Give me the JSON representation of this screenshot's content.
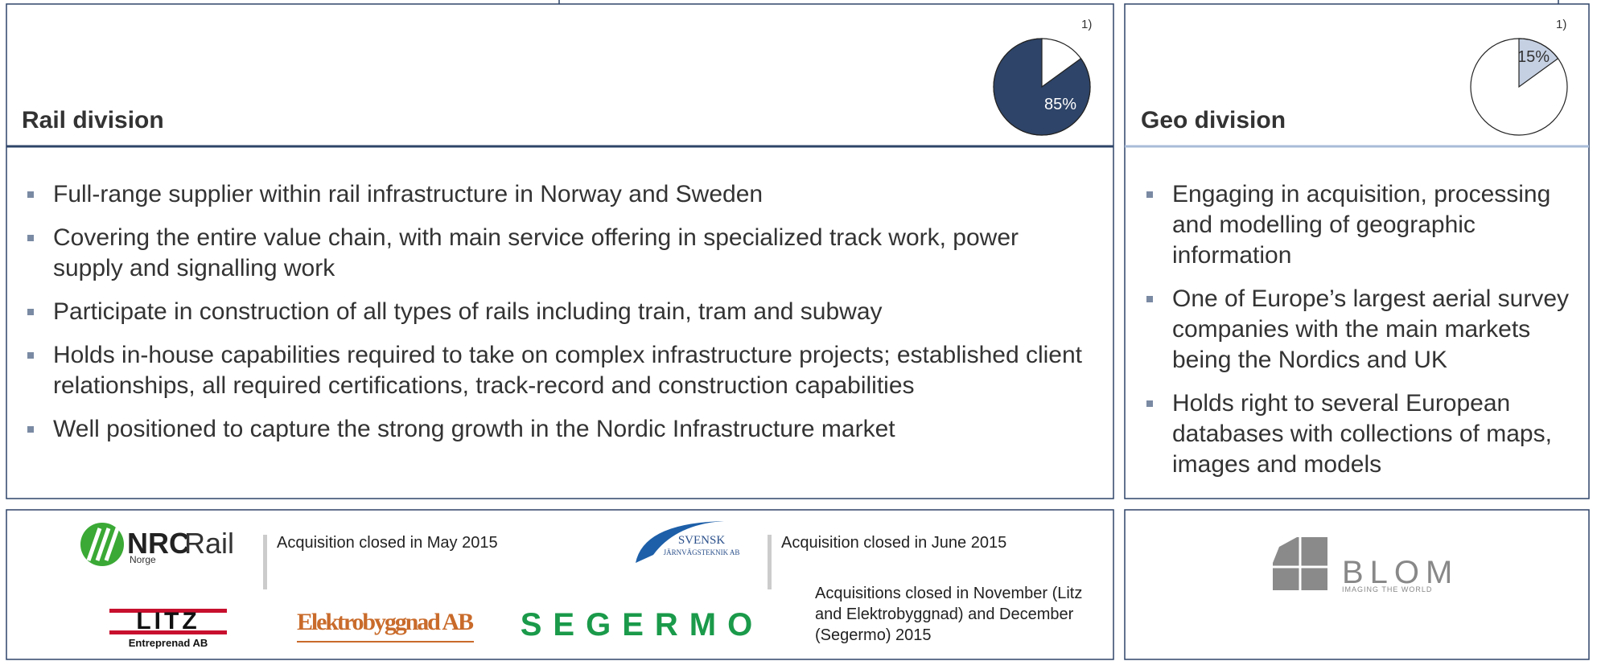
{
  "rail": {
    "title": "Rail division",
    "footnote": "1)",
    "share": {
      "value": 85,
      "label": "85%"
    },
    "bullets": [
      "Full-range supplier within rail infrastructure in Norway and Sweden",
      "Covering the entire value chain, with main service offering in specialized track work, power supply and signalling work",
      "Participate in construction of all types of rails including train, tram and subway",
      "Holds in-house capabilities required to take on complex infrastructure projects; established client relationships, all required certifications, track-record and construction capabilities",
      "Well positioned to capture the strong growth in the Nordic Infrastructure market"
    ],
    "logos": {
      "nrc": "NRC",
      "rail": "Rail",
      "norge": "Norge",
      "svensk": "SVENSK",
      "jarnvag": "JÄRNVÄGSTEKNIK AB",
      "litz": "LITZ",
      "litz_sub": "Entreprenad AB",
      "elektro": "Elektrobyggnad AB",
      "segermo": "SEGERMO"
    },
    "captions": [
      "Acquisition closed in May 2015",
      "Acquisition closed in June 2015",
      "Acquisitions closed in November (Litz and Elektrobyggnad) and December (Segermo) 2015"
    ]
  },
  "geo": {
    "title": "Geo division",
    "footnote": "1)",
    "share": {
      "value": 15,
      "label": "15%"
    },
    "bullets": [
      "Engaging in acquisition, processing and modelling of geographic information",
      "One of Europe’s largest aerial survey companies with the main markets being the Nordics and UK",
      "Holds right to several European databases with collections of maps, images and models"
    ],
    "logos": {
      "blom": "BLOM",
      "blom_sub": "IMAGING THE WORLD"
    }
  }
}
